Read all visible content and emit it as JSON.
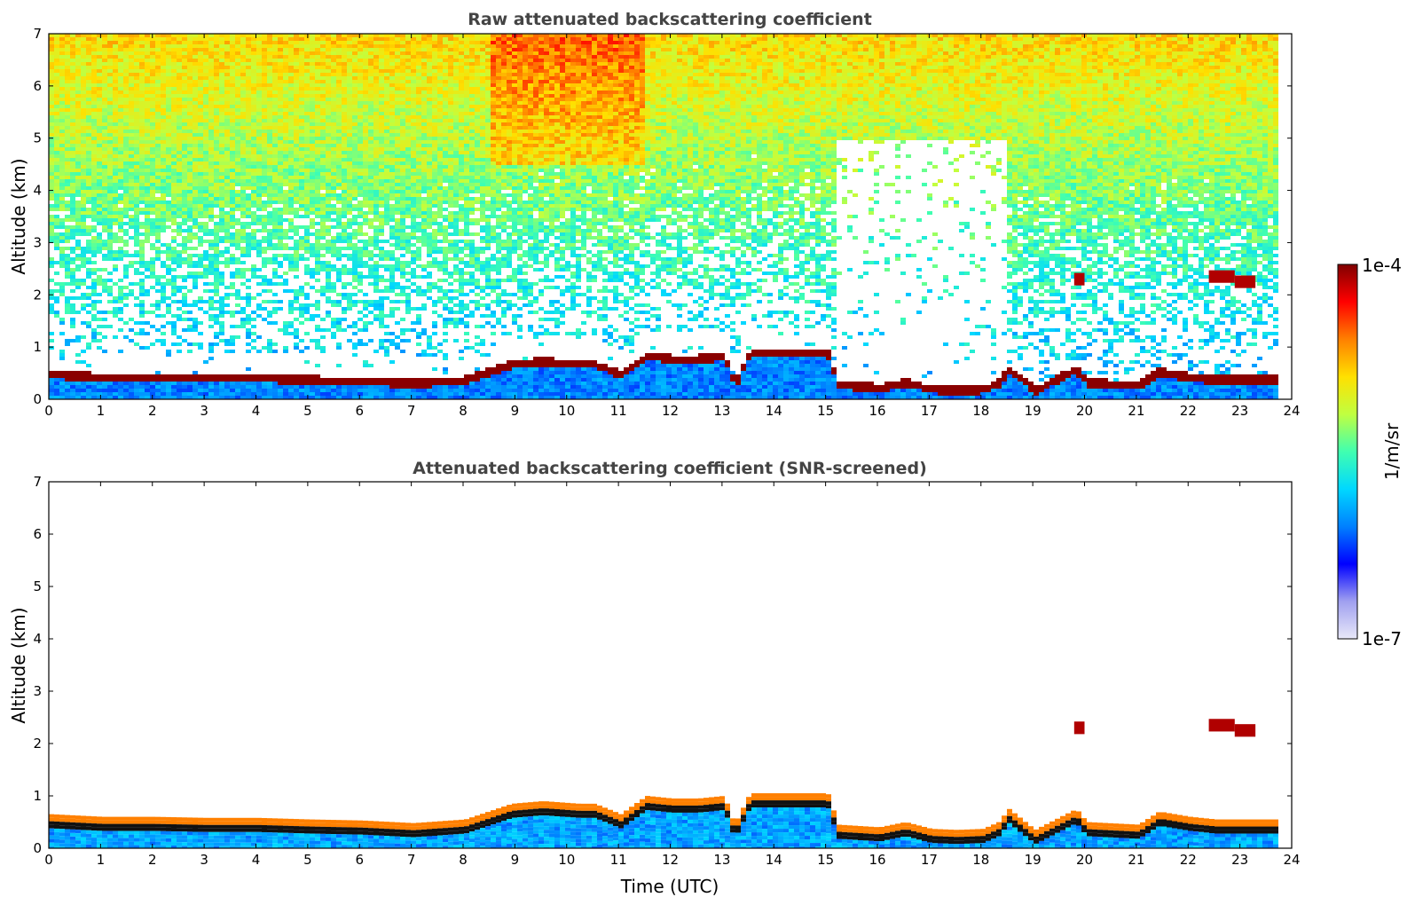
{
  "chart_data": [
    {
      "type": "heatmap",
      "id": "raw",
      "title": "Raw attenuated backscattering coefficient",
      "xlabel": "",
      "ylabel": "Altitude (km)",
      "xlim": [
        0,
        24
      ],
      "ylim": [
        0,
        7
      ],
      "x_ticks": [
        0,
        1,
        2,
        3,
        4,
        5,
        6,
        7,
        8,
        9,
        10,
        11,
        12,
        13,
        14,
        15,
        16,
        17,
        18,
        19,
        20,
        21,
        22,
        23,
        24
      ],
      "y_ticks": [
        0,
        1,
        2,
        3,
        4,
        5,
        6,
        7
      ],
      "data_end_time": 23.7,
      "boundary_layer_top_km": {
        "time": [
          0,
          1,
          2,
          3,
          4,
          5,
          6,
          7,
          8,
          8.9,
          9.5,
          10.2,
          10.5,
          11,
          11.5,
          12,
          12.5,
          13,
          13.2,
          13.5,
          14,
          14.5,
          15,
          15.2,
          16,
          16.5,
          17,
          17.5,
          18,
          18.3,
          18.5,
          19,
          19.5,
          19.8,
          20,
          21,
          21.4,
          22,
          22.5,
          23,
          23.7
        ],
        "value": [
          0.5,
          0.45,
          0.45,
          0.43,
          0.43,
          0.4,
          0.38,
          0.33,
          0.4,
          0.7,
          0.75,
          0.7,
          0.7,
          0.5,
          0.85,
          0.8,
          0.8,
          0.85,
          0.3,
          0.9,
          0.9,
          0.9,
          0.9,
          0.3,
          0.25,
          0.35,
          0.22,
          0.2,
          0.22,
          0.35,
          0.6,
          0.2,
          0.45,
          0.6,
          0.35,
          0.3,
          0.55,
          0.45,
          0.4,
          0.4,
          0.4
        ]
      },
      "elevated_layers_km": [
        {
          "t0": 19.8,
          "t1": 20.0,
          "alt": 2.3
        },
        {
          "t0": 22.4,
          "t1": 22.9,
          "alt": 2.35
        },
        {
          "t0": 22.9,
          "t1": 23.3,
          "alt": 2.25
        }
      ]
    },
    {
      "type": "heatmap",
      "id": "snr",
      "title": "Attenuated backscattering coefficient (SNR-screened)",
      "xlabel": "Time (UTC)",
      "ylabel": "Altitude (km)",
      "xlim": [
        0,
        24
      ],
      "ylim": [
        0,
        7
      ],
      "x_ticks": [
        0,
        1,
        2,
        3,
        4,
        5,
        6,
        7,
        8,
        9,
        10,
        11,
        12,
        13,
        14,
        15,
        16,
        17,
        18,
        19,
        20,
        21,
        22,
        23,
        24
      ],
      "y_ticks": [
        0,
        1,
        2,
        3,
        4,
        5,
        6,
        7
      ],
      "data_end_time": 23.7
    }
  ],
  "colorbar": {
    "label": "1/m/sr",
    "max_label": "1e-4",
    "min_label": "1e-7",
    "scale": "log",
    "colormap": [
      "#e8e8f8",
      "#a0a0f0",
      "#0000ff",
      "#0080ff",
      "#00d8ff",
      "#40ffb0",
      "#c0ff40",
      "#ffe000",
      "#ff8000",
      "#ff0000",
      "#800000"
    ]
  }
}
